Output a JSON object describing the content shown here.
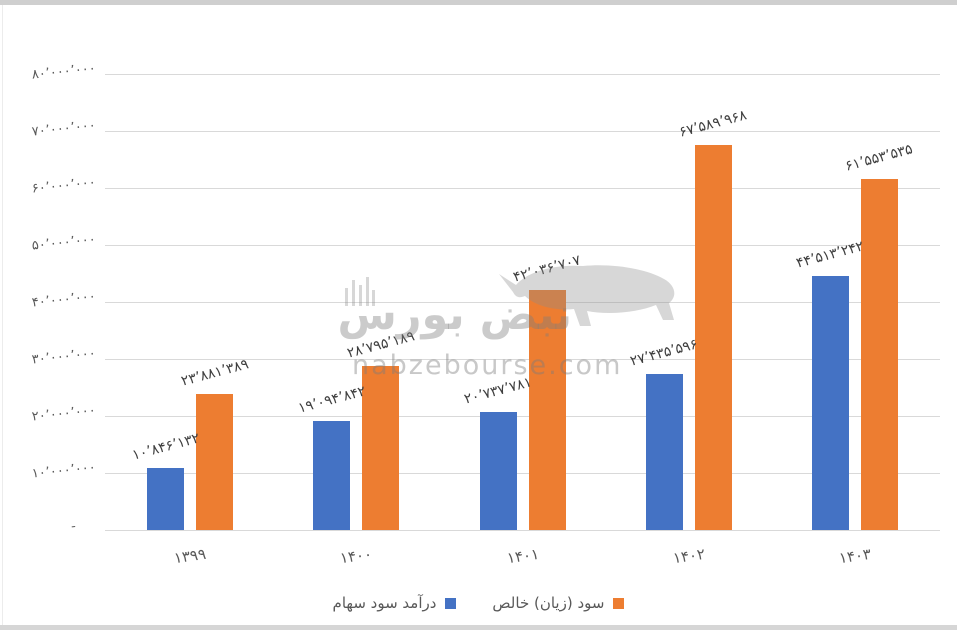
{
  "watermark": {
    "logo_text": "نبض بورس",
    "url_text": "nabzebourse.com"
  },
  "chart_data": {
    "type": "bar",
    "title": "",
    "xlabel": "",
    "ylabel": "",
    "direction": "rtl",
    "categories": [
      "۱۳۹۹",
      "۱۴۰۰",
      "۱۴۰۱",
      "۱۴۰۲",
      "۱۴۰۳"
    ],
    "series": [
      {
        "key": "dividend_income",
        "name": "درآمد سود سهام",
        "color": "#4472C4",
        "values": [
          10846132,
          19094842,
          20737781,
          27435596,
          44513242
        ],
        "value_labels": [
          "۱۰٬۸۴۶٬۱۳۲",
          "۱۹٬۰۹۴٬۸۴۲",
          "۲۰٬۷۳۷٬۷۸۱",
          "۲۷٬۴۳۵٬۵۹۶",
          "۴۴٬۵۱۳٬۲۴۲"
        ]
      },
      {
        "key": "net_profit_loss",
        "name": "سود (زیان) خالص",
        "color": "#ED7D31",
        "values": [
          23881389,
          28795189,
          42036707,
          67589968,
          61553535
        ],
        "value_labels": [
          "۲۳٬۸۸۱٬۳۸۹",
          "۲۸٬۷۹۵٬۱۸۹",
          "۴۲٬۰۳۶٬۷۰۷",
          "۶۷٬۵۸۹٬۹۶۸",
          "۶۱٬۵۵۳٬۵۳۵"
        ]
      }
    ],
    "y_axis": {
      "min": 0,
      "max": 80000000,
      "step": 10000000,
      "tick_labels_top_to_bottom": [
        "۸۰٬۰۰۰٬۰۰۰",
        "۷۰٬۰۰۰٬۰۰۰",
        "۶۰٬۰۰۰٬۰۰۰",
        "۵۰٬۰۰۰٬۰۰۰",
        "۴۰٬۰۰۰٬۰۰۰",
        "۳۰٬۰۰۰٬۰۰۰",
        "۲۰٬۰۰۰٬۰۰۰",
        "۱۰٬۰۰۰٬۰۰۰",
        "-"
      ]
    },
    "grid": true,
    "legend_position": "bottom",
    "gridline_color": "#D9D9D9",
    "axis_text_color": "#595959",
    "label_text_color": "#3F3F3F"
  }
}
